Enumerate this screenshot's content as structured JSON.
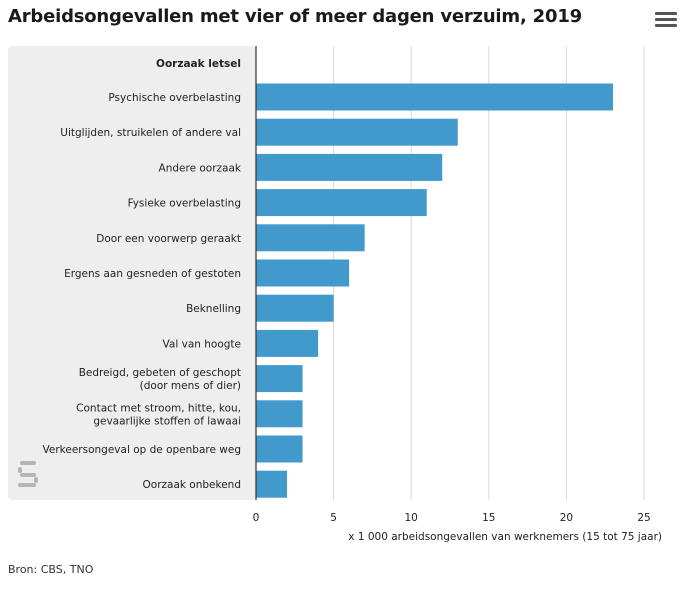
{
  "title": "Arbeidsongevallen met vier of meer dagen verzuim, 2019",
  "source": "Bron: CBS, TNO",
  "logo_text": "cbs",
  "colors": {
    "bar": "#4199cc",
    "label_bg": "#eeeeee",
    "grid": "#d8d8d8"
  },
  "chart_data": {
    "type": "bar",
    "orientation": "horizontal",
    "category_header": "Oorzaak letsel",
    "categories": [
      [
        "Psychische overbelasting"
      ],
      [
        "Uitglijden, struikelen of andere val"
      ],
      [
        "Andere oorzaak"
      ],
      [
        "Fysieke overbelasting"
      ],
      [
        "Door een voorwerp geraakt"
      ],
      [
        "Ergens aan gesneden of gestoten"
      ],
      [
        "Beknelling"
      ],
      [
        "Val van hoogte"
      ],
      [
        "Bedreigd, gebeten of geschopt",
        "(door mens of dier)"
      ],
      [
        "Contact met stroom, hitte, kou,",
        "gevaarlijke stoffen of lawaai"
      ],
      [
        "Verkeersongeval op de openbare weg"
      ],
      [
        "Oorzaak onbekend"
      ]
    ],
    "values": [
      23,
      13,
      12,
      11,
      7,
      6,
      5,
      4,
      3,
      3,
      3,
      2
    ],
    "xlim": [
      0,
      25
    ],
    "xticks": [
      0,
      5,
      10,
      15,
      20,
      25
    ],
    "xlabel": "x 1 000 arbeidsongevallen van werknemers (15 tot 75 jaar)",
    "grid": true
  }
}
